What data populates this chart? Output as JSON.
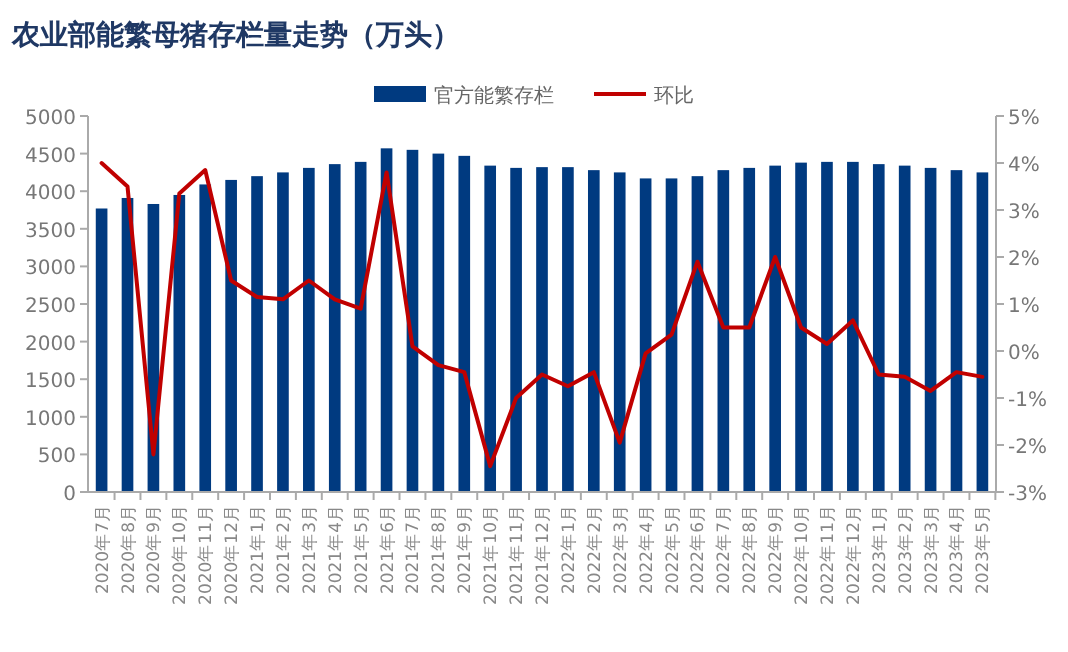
{
  "chart_data": {
    "type": "bar",
    "title": "农业部能繁母猪存栏量走势（万头）",
    "categories": [
      "2020年7月",
      "2020年8月",
      "2020年9月",
      "2020年10月",
      "2020年11月",
      "2020年12月",
      "2021年1月",
      "2021年2月",
      "2021年3月",
      "2021年4月",
      "2021年5月",
      "2021年6月",
      "2021年7月",
      "2021年8月",
      "2021年9月",
      "2021年10月",
      "2021年11月",
      "2021年12月",
      "2022年1月",
      "2022年2月",
      "2022年3月",
      "2022年4月",
      "2022年5月",
      "2022年6月",
      "2022年7月",
      "2022年8月",
      "2022年9月",
      "2022年10月",
      "2022年11月",
      "2022年12月",
      "2023年1月",
      "2023年2月",
      "2023年3月",
      "2023年4月",
      "2023年5月"
    ],
    "series": [
      {
        "name": "官方能繁存栏",
        "color": "#003a80",
        "values": [
          3770,
          3910,
          3830,
          3950,
          4090,
          4150,
          4200,
          4250,
          4310,
          4360,
          4390,
          4570,
          4550,
          4500,
          4470,
          4340,
          4310,
          4320,
          4320,
          4280,
          4250,
          4170,
          4170,
          4200,
          4280,
          4310,
          4340,
          4380,
          4390,
          4390,
          4360,
          4340,
          4310,
          4280,
          4250
        ]
      },
      {
        "name": "环比",
        "type": "line",
        "axis": "y2",
        "color": "#c00000",
        "values": [
          4.0,
          3.5,
          -2.2,
          3.35,
          3.85,
          1.5,
          1.15,
          1.1,
          1.5,
          1.1,
          0.9,
          3.8,
          0.1,
          -0.3,
          -0.45,
          -2.45,
          -1.0,
          -0.5,
          -0.75,
          -0.45,
          -1.95,
          -0.05,
          0.35,
          1.9,
          0.5,
          0.5,
          2.0,
          0.5,
          0.15,
          0.65,
          -0.5,
          -0.55,
          -0.85,
          -0.45,
          -0.55
        ]
      }
    ],
    "ylim": [
      0,
      5000
    ],
    "yticks": [
      0,
      500,
      1000,
      1500,
      2000,
      2500,
      3000,
      3500,
      4000,
      4500,
      5000
    ],
    "y2lim": [
      -3,
      5
    ],
    "y2ticks": [
      {
        "value": -3,
        "label": "-3%"
      },
      {
        "value": -2,
        "label": "-2%"
      },
      {
        "value": -1,
        "label": "-1%"
      },
      {
        "value": 0,
        "label": "0%"
      },
      {
        "value": 1,
        "label": "1%"
      },
      {
        "value": 2,
        "label": "2%"
      },
      {
        "value": 3,
        "label": "3%"
      },
      {
        "value": 4,
        "label": "4%"
      },
      {
        "value": 5,
        "label": "5%"
      }
    ],
    "legend": "top",
    "grid": false
  }
}
